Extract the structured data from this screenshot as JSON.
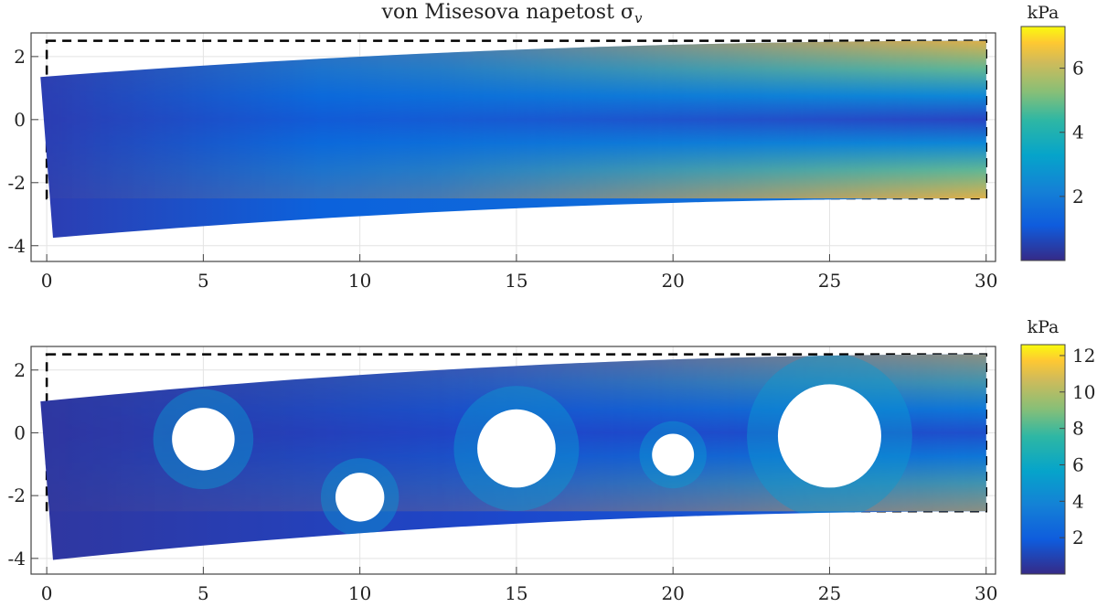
{
  "chart_data": [
    {
      "type": "heatmap",
      "title": "von Misesova napetost σ",
      "title_subscript": "v",
      "xlim": [
        -0.5,
        30.3
      ],
      "ylim": [
        -4.5,
        2.75
      ],
      "xticks": [
        0,
        5,
        10,
        15,
        20,
        25,
        30
      ],
      "yticks": [
        -4,
        -2,
        0,
        2
      ],
      "grid": true,
      "colorbar": {
        "label": "kPa",
        "ticks": [
          2,
          4,
          6
        ],
        "range": [
          0,
          7.3
        ],
        "colormap": "parula"
      },
      "undeformed_outline": {
        "x": [
          0,
          30
        ],
        "y": [
          -2.5,
          2.5
        ],
        "style": "dashed"
      },
      "deformed_corners": {
        "top_left": [
          -0.2,
          1.35
        ],
        "bottom_left": [
          0.2,
          -3.75
        ],
        "top_right": [
          30,
          2.5
        ],
        "bottom_right": [
          30,
          -2.5
        ]
      },
      "holes": []
    },
    {
      "type": "heatmap",
      "title": "",
      "xlim": [
        -0.5,
        30.3
      ],
      "ylim": [
        -4.5,
        2.75
      ],
      "xticks": [
        0,
        5,
        10,
        15,
        20,
        25,
        30
      ],
      "yticks": [
        -4,
        -2,
        0,
        2
      ],
      "grid": true,
      "colorbar": {
        "label": "kPa",
        "ticks": [
          2,
          4,
          6,
          8,
          10,
          12
        ],
        "range": [
          0,
          12.6
        ],
        "colormap": "parula"
      },
      "undeformed_outline": {
        "x": [
          0,
          30
        ],
        "y": [
          -2.5,
          2.5
        ],
        "style": "dashed"
      },
      "deformed_corners": {
        "top_left": [
          -0.2,
          1.0
        ],
        "bottom_left": [
          0.2,
          -4.05
        ],
        "top_right": [
          30,
          2.5
        ],
        "bottom_right": [
          30,
          -2.5
        ]
      },
      "holes": [
        {
          "x": 5,
          "y": -0.2,
          "r": 1.0
        },
        {
          "x": 10,
          "y": -2.05,
          "r": 0.78
        },
        {
          "x": 15,
          "y": -0.5,
          "r": 1.25
        },
        {
          "x": 20,
          "y": -0.7,
          "r": 0.67
        },
        {
          "x": 25,
          "y": -0.1,
          "r": 1.65
        }
      ]
    }
  ]
}
